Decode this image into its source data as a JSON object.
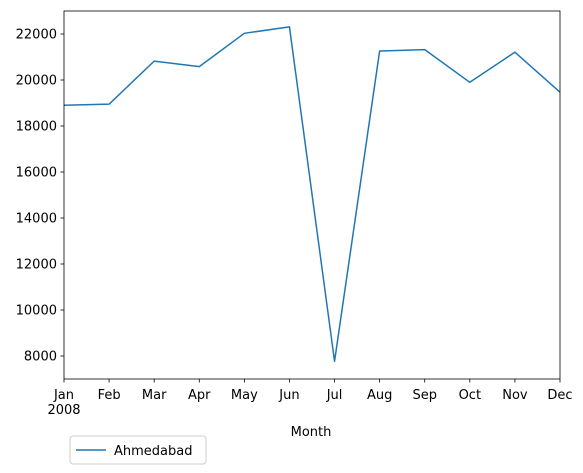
{
  "chart_data": {
    "type": "line",
    "x": [
      "Jan",
      "Feb",
      "Mar",
      "Apr",
      "May",
      "Jun",
      "Jul",
      "Aug",
      "Sep",
      "Oct",
      "Nov",
      "Dec"
    ],
    "x_tick_labels": [
      "Jan",
      "Feb",
      "Mar",
      "Apr",
      "May",
      "Jun",
      "Jul",
      "Aug",
      "Sep",
      "Oct",
      "Nov",
      "Dec"
    ],
    "x_tick_sublabel": "2008",
    "series": [
      {
        "name": "Ahmedabad",
        "color": "#1f77b4",
        "values": [
          18900,
          18950,
          20820,
          20580,
          22030,
          22310,
          7770,
          21260,
          21320,
          19900,
          21210,
          19470
        ]
      }
    ],
    "xlabel": "Month",
    "ylabel": "",
    "ylim": [
      7000,
      23000
    ],
    "yticks": [
      8000,
      10000,
      12000,
      14000,
      16000,
      18000,
      20000,
      22000
    ],
    "grid": false,
    "legend_position": "bottom-left, below plot"
  }
}
